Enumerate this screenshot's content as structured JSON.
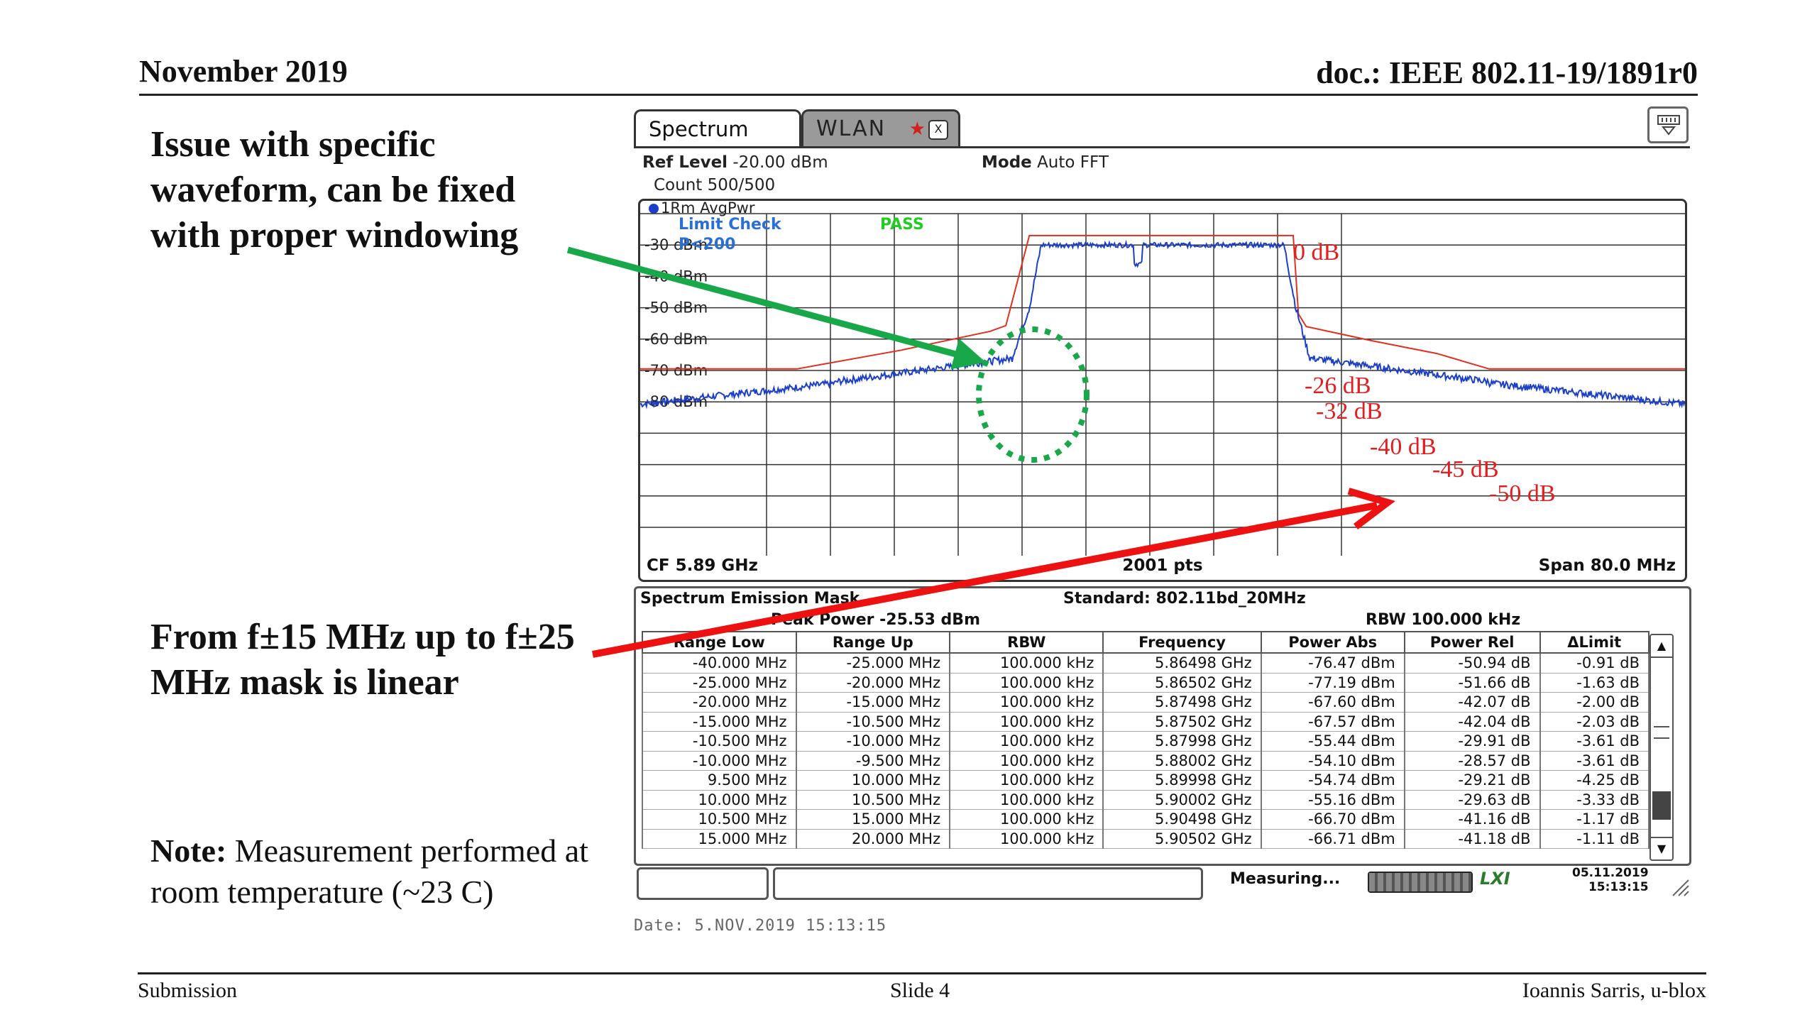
{
  "slide": {
    "date": "November 2019",
    "doc": "doc.: IEEE 802.11-19/1891r0",
    "footer_left": "Submission",
    "footer_center": "Slide 4",
    "footer_right": "Ioannis Sarris, u-blox"
  },
  "text": {
    "issue": "Issue with specific waveform, can be fixed with proper windowing",
    "mask_linear": "From  f±15 MHz up to f±25 MHz mask is linear",
    "note_label": "Note:",
    "note_body": " Measurement performed at room temperature (~23 C)"
  },
  "instrument": {
    "tab_spectrum": "Spectrum",
    "tab_wlan": "WLAN",
    "tab_close": "X",
    "ref_level_label": "Ref Level",
    "ref_level_value": "-20.00 dBm",
    "mode_label": "Mode",
    "mode_value": "Auto FFT",
    "count": "Count 500/500",
    "trace": "1Rm AvgPwr",
    "limit_check": "Limit Check",
    "limit_name": "P<200",
    "pass": "PASS",
    "cf": "CF 5.89 GHz",
    "points": "2001 pts",
    "span": "Span 80.0 MHz",
    "y_ticks": [
      "-30 dBm",
      "-40 dBm",
      "-50 dBm",
      "-60 dBm",
      "-70 dBm",
      "-80 dBm"
    ],
    "mask_labels": [
      "0 dB",
      "-26 dB",
      "-32 dB",
      "-40 dB",
      "-45 dB",
      "-50 dB"
    ],
    "status_measuring": "Measuring...",
    "status_lxi": "LXI",
    "status_date": "05.11.2019",
    "status_time": "15:13:15",
    "date_line": "Date: 5.NOV.2019  15:13:15"
  },
  "sem": {
    "title": "Spectrum Emission Mask",
    "standard": "Standard: 802.11bd_20MHz",
    "peak_power": "Peak Power  -25.53 dBm",
    "rbw": "RBW  100.000 kHz",
    "headers": [
      "Range Low",
      "Range Up",
      "RBW",
      "Frequency",
      "Power Abs",
      "Power Rel",
      "ΔLimit"
    ],
    "rows": [
      [
        "-40.000 MHz",
        "-25.000 MHz",
        "100.000 kHz",
        "5.86498 GHz",
        "-76.47 dBm",
        "-50.94 dB",
        "-0.91 dB"
      ],
      [
        "-25.000 MHz",
        "-20.000 MHz",
        "100.000 kHz",
        "5.86502 GHz",
        "-77.19 dBm",
        "-51.66 dB",
        "-1.63 dB"
      ],
      [
        "-20.000 MHz",
        "-15.000 MHz",
        "100.000 kHz",
        "5.87498 GHz",
        "-67.60 dBm",
        "-42.07 dB",
        "-2.00 dB"
      ],
      [
        "-15.000 MHz",
        "-10.500 MHz",
        "100.000 kHz",
        "5.87502 GHz",
        "-67.57 dBm",
        "-42.04 dB",
        "-2.03 dB"
      ],
      [
        "-10.500 MHz",
        "-10.000 MHz",
        "100.000 kHz",
        "5.87998 GHz",
        "-55.44 dBm",
        "-29.91 dB",
        "-3.61 dB"
      ],
      [
        "-10.000 MHz",
        "-9.500 MHz",
        "100.000 kHz",
        "5.88002 GHz",
        "-54.10 dBm",
        "-28.57 dB",
        "-3.61 dB"
      ],
      [
        "9.500 MHz",
        "10.000 MHz",
        "100.000 kHz",
        "5.89998 GHz",
        "-54.74 dBm",
        "-29.21 dB",
        "-4.25 dB"
      ],
      [
        "10.000 MHz",
        "10.500 MHz",
        "100.000 kHz",
        "5.90002 GHz",
        "-55.16 dBm",
        "-29.63 dB",
        "-3.33 dB"
      ],
      [
        "10.500 MHz",
        "15.000 MHz",
        "100.000 kHz",
        "5.90498 GHz",
        "-66.70 dBm",
        "-41.16 dB",
        "-1.17 dB"
      ],
      [
        "15.000 MHz",
        "20.000 MHz",
        "100.000 kHz",
        "5.90502 GHz",
        "-66.71 dBm",
        "-41.18 dB",
        "-1.11 dB"
      ]
    ]
  },
  "colors": {
    "trace": "#1b3fc8",
    "mask": "#e03020",
    "annotation_red": "#ee1111",
    "arrow_green": "#18a84a",
    "pass_green": "#22cc22"
  }
}
